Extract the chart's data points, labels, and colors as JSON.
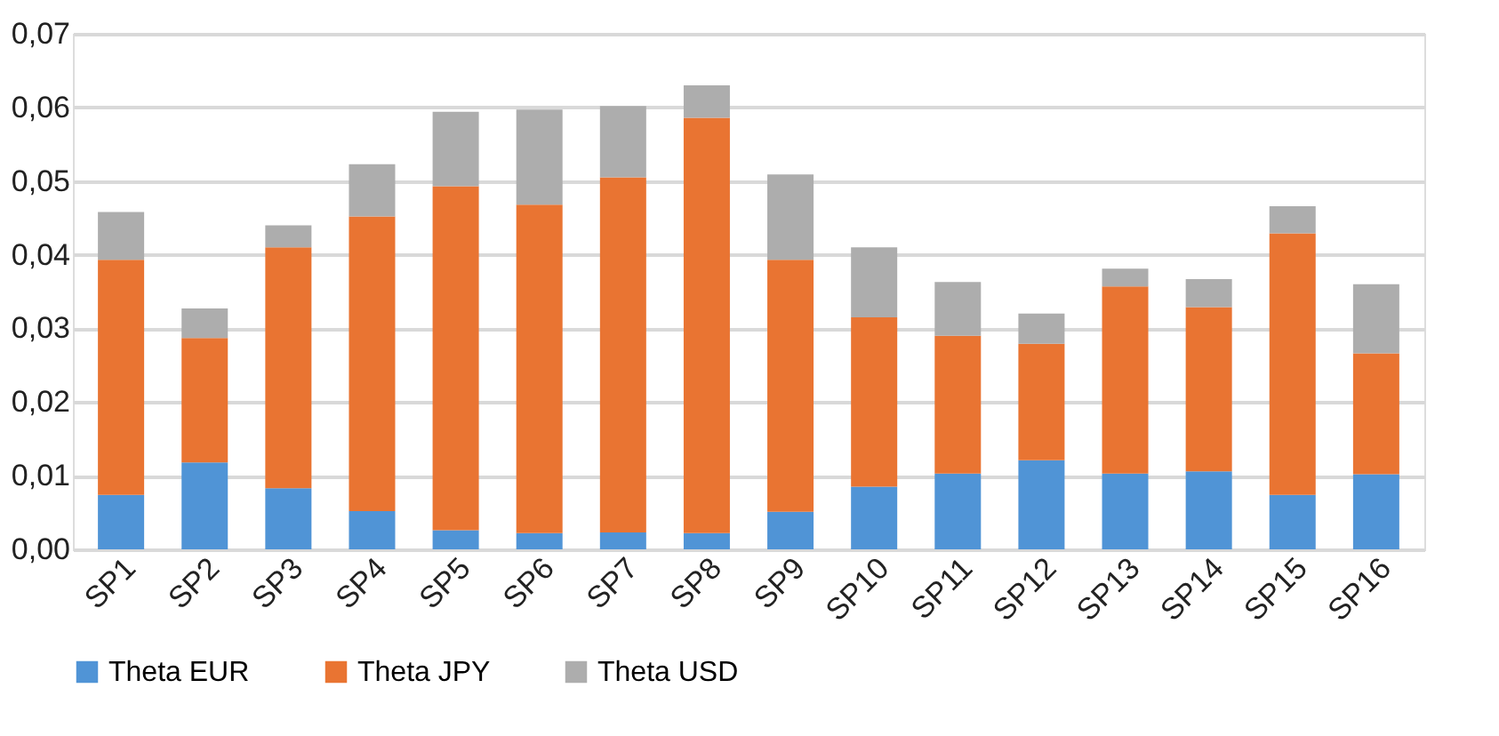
{
  "chart_data": {
    "type": "bar",
    "stacked": true,
    "categories": [
      "SP1",
      "SP2",
      "SP3",
      "SP4",
      "SP5",
      "SP6",
      "SP7",
      "SP8",
      "SP9",
      "SP10",
      "SP11",
      "SP12",
      "SP13",
      "SP14",
      "SP15",
      "SP16"
    ],
    "series": [
      {
        "name": "Theta EUR",
        "color": "#5094d6",
        "values": [
          0.0074,
          0.0118,
          0.0083,
          0.0052,
          0.0026,
          0.0022,
          0.0023,
          0.0022,
          0.0051,
          0.0085,
          0.0103,
          0.0121,
          0.0103,
          0.0106,
          0.0074,
          0.0102
        ]
      },
      {
        "name": "Theta JPY",
        "color": "#e97432",
        "values": [
          0.0319,
          0.0169,
          0.0327,
          0.04,
          0.0467,
          0.0446,
          0.0482,
          0.0564,
          0.0342,
          0.023,
          0.0187,
          0.0158,
          0.0254,
          0.0223,
          0.0355,
          0.0164
        ]
      },
      {
        "name": "Theta USD",
        "color": "#adadad",
        "values": [
          0.0065,
          0.004,
          0.003,
          0.0071,
          0.0101,
          0.0129,
          0.0097,
          0.0044,
          0.0116,
          0.0095,
          0.0073,
          0.0041,
          0.0024,
          0.0038,
          0.0037,
          0.0094
        ]
      }
    ],
    "ylim": [
      0,
      0.07
    ],
    "yticks": [
      {
        "value": 0,
        "label": "0,00"
      },
      {
        "value": 0.01,
        "label": "0,01"
      },
      {
        "value": 0.02,
        "label": "0,02"
      },
      {
        "value": 0.03,
        "label": "0,03"
      },
      {
        "value": 0.04,
        "label": "0,04"
      },
      {
        "value": 0.05,
        "label": "0,05"
      },
      {
        "value": 0.06,
        "label": "0,06"
      },
      {
        "value": 0.07,
        "label": "0,07"
      }
    ],
    "grid": "y",
    "legend": "bottom"
  }
}
